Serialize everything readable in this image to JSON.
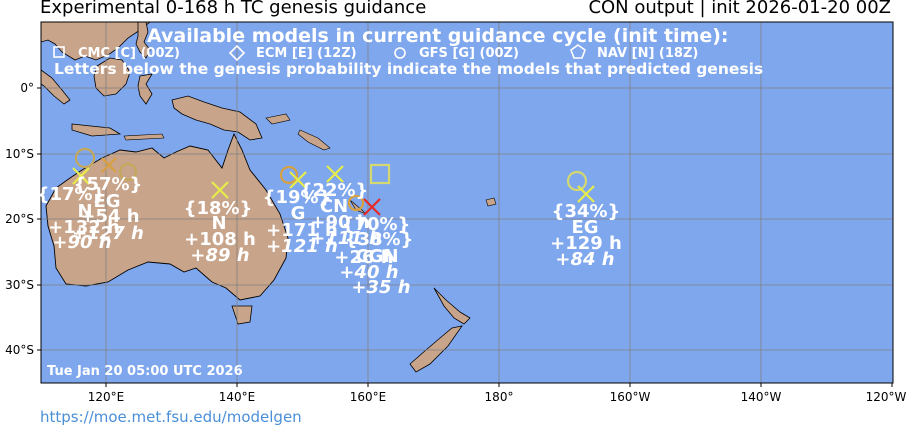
{
  "header": {
    "title_left": "Experimental 0-168 h TC genesis guidance",
    "title_right": "CON output | init 2026-01-20 00Z"
  },
  "map": {
    "ocean_color": "#7fa7ee",
    "land_color": "#c8a48a",
    "legend": {
      "heading": "Available models in current guidance cycle (init time):",
      "models": [
        {
          "icon": "square-icon",
          "label": "CMC [C] (00Z)"
        },
        {
          "icon": "diamond-icon",
          "label": "ECM [E] (12Z)"
        },
        {
          "icon": "circle-icon",
          "label": "GFS [G] (00Z)"
        },
        {
          "icon": "pentagon-icon",
          "label": "NAV [N] (18Z)"
        }
      ],
      "note": "Letters below the genesis probability indicate the models that predicted genesis"
    },
    "timestamp": "Tue Jan 20 05:00 UTC 2026",
    "lat_labels": [
      "0°",
      "10°S",
      "20°S",
      "30°S",
      "40°S"
    ],
    "lon_labels": [
      "120°E",
      "140°E",
      "160°E",
      "180°",
      "160°W",
      "140°W",
      "120°W"
    ]
  },
  "labels": [
    {
      "text": "{17%}",
      "italic": false
    },
    {
      "text": "{57%}",
      "italic": false
    },
    {
      "text": "EG",
      "italic": false
    },
    {
      "text": "N",
      "italic": false
    },
    {
      "text": "+54 h",
      "italic": false
    },
    {
      "text": "+132 h",
      "italic": false
    },
    {
      "text": "+127 h",
      "italic": true
    },
    {
      "text": "+90 h",
      "italic": true
    },
    {
      "text": "{18%}",
      "italic": false
    },
    {
      "text": "N",
      "italic": false
    },
    {
      "text": "+108 h",
      "italic": false
    },
    {
      "text": "+89 h",
      "italic": true
    },
    {
      "text": "{19%}",
      "italic": false
    },
    {
      "text": "{22%}",
      "italic": false
    },
    {
      "text": "G",
      "italic": false
    },
    {
      "text": "CN",
      "italic": false
    },
    {
      "text": "+171 h",
      "italic": false
    },
    {
      "text": "+121 h",
      "italic": true
    },
    {
      "text": "+90 h",
      "italic": false
    },
    {
      "text": "{70%}",
      "italic": false
    },
    {
      "text": "+111 h",
      "italic": true
    },
    {
      "text": "{38%}",
      "italic": false
    },
    {
      "text": "CGN",
      "italic": false
    },
    {
      "text": "+26 h",
      "italic": false
    },
    {
      "text": "+40 h",
      "italic": true
    },
    {
      "text": "+35 h",
      "italic": true
    },
    {
      "text": "{34%}",
      "italic": false
    },
    {
      "text": "EG",
      "italic": false
    },
    {
      "text": "+129 h",
      "italic": false
    },
    {
      "text": "+84 h",
      "italic": true
    }
  ],
  "footer": {
    "url": "https://moe.met.fsu.edu/modelgen"
  }
}
